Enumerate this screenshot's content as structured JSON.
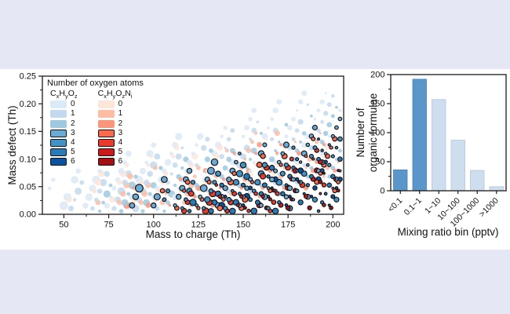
{
  "page": {
    "background_color": "#e6e7f4",
    "panel_color": "#ffffff",
    "axis_color": "#1a1a1a"
  },
  "chart_data": [
    {
      "type": "scatter",
      "xlabel": "Mass to charge (Th)",
      "ylabel": "Mass defect (Th)",
      "xlim": [
        38,
        206
      ],
      "ylim": [
        0,
        0.25
      ],
      "x_ticks": [
        50,
        75,
        100,
        125,
        150,
        175,
        200
      ],
      "x_minor_ticks": [
        62.5,
        87.5,
        112.5,
        137.5,
        162.5,
        187.5
      ],
      "y_ticks": [
        {
          "v": 0.0,
          "label": "0.00"
        },
        {
          "v": 0.05,
          "label": "0.05"
        },
        {
          "v": 0.1,
          "label": "0.10"
        },
        {
          "v": 0.15,
          "label": "0.15"
        },
        {
          "v": 0.2,
          "label": "0.20"
        },
        {
          "v": 0.25,
          "label": "0.25"
        }
      ],
      "y_minor_ticks": [
        0.025,
        0.075,
        0.125,
        0.175,
        0.225
      ],
      "legend": {
        "header": "Number of oxygen atoms",
        "levels": [
          "0",
          "1",
          "2",
          "3",
          "4",
          "5",
          "6"
        ],
        "outlined_from_level": 3,
        "columns": [
          {
            "name": "CHO-series",
            "formula": [
              [
                "C",
                "n"
              ],
              [
                "x",
                "s"
              ],
              [
                "H",
                "n"
              ],
              [
                "y",
                "s"
              ],
              [
                "O",
                "n"
              ],
              [
                "z",
                "s"
              ]
            ],
            "colors": [
              "#dce9f6",
              "#c3d9ee",
              "#9ec9e1",
              "#6aaad5",
              "#4292c6",
              "#2a7ab8",
              "#0d529e"
            ]
          },
          {
            "name": "CHON-series",
            "formula": [
              [
                "C",
                "n"
              ],
              [
                "x",
                "s"
              ],
              [
                "H",
                "n"
              ],
              [
                "y",
                "s"
              ],
              [
                "O",
                "n"
              ],
              [
                "z",
                "s"
              ],
              [
                "N",
                "n"
              ],
              [
                "i",
                "s"
              ]
            ],
            "colors": [
              "#fee5d9",
              "#fcbda4",
              "#fc9579",
              "#f9694c",
              "#e93a2d",
              "#cb1a1d",
              "#a31015"
            ]
          }
        ]
      },
      "point_generator": {
        "note": "dots are CxHyOz / CxHyOzN formulae: nominal mass = 12C+H+16O(+14 for N); mass defect = 0.00783*H - 0.00509*O (+0.00307 for N); color = oxygen count 0-6; black outline when O>=3; size decreases with mass",
        "h_defect": 0.00783,
        "o_defect": -0.00509,
        "n_defect": 0.00307,
        "cho": {
          "c_range": [
            3,
            15
          ],
          "o_range": [
            0,
            6
          ],
          "h_step": 2,
          "keep_fraction": 0.88
        },
        "chon": {
          "c_range": [
            3,
            14
          ],
          "o_range": [
            0,
            6
          ],
          "h_step": 2,
          "keep_fraction": 0.62,
          "max_defect": 0.148
        },
        "mass_range": [
          40,
          204
        ],
        "defect_range": [
          0.004,
          0.232
        ]
      }
    },
    {
      "type": "bar",
      "xlabel": "Mixing ratio bin (pptv)",
      "ylabel_lines": [
        "Number of",
        "organic formulae"
      ],
      "categories": [
        "<0.1",
        "0.1~1",
        "1~10",
        "10~100",
        "100~1000",
        ">1000"
      ],
      "values": [
        36,
        192,
        157,
        87,
        35,
        7
      ],
      "bar_colors": [
        "#5b96cb",
        "#5b96cb",
        "#cfdeef",
        "#cfdeef",
        "#cfdeef",
        "#cfdeef"
      ],
      "bar_edge_colors": [
        "#4a82b0",
        "#4a82b0",
        "#aec4e0",
        "#aec4e0",
        "#aec4e0",
        "#aec4e0"
      ],
      "ylim": [
        0,
        200
      ],
      "y_ticks": [
        0,
        50,
        100,
        150,
        200
      ],
      "y_minor_step": 25
    }
  ]
}
